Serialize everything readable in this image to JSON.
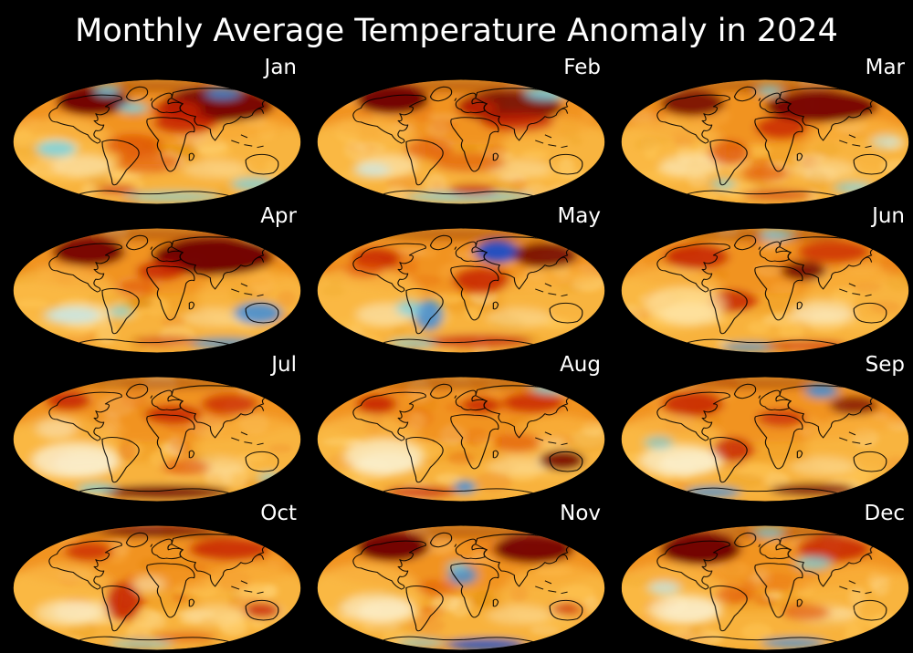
{
  "title": "Monthly Average Temperature Anomaly in 2024",
  "chart_data": {
    "type": "heatmap",
    "subtype": "global-temperature-anomaly-map-small-multiples",
    "projection": "mollweide",
    "title": "Monthly Average Temperature Anomaly in 2024",
    "grid": {
      "rows": 4,
      "cols": 3
    },
    "categories": [
      "Jan",
      "Feb",
      "Mar",
      "Apr",
      "May",
      "Jun",
      "Jul",
      "Aug",
      "Sep",
      "Oct",
      "Nov",
      "Dec"
    ],
    "background": "#000000",
    "colormap": "diverging blue-cyan-cream-gold-orange-red-darkred",
    "legend": "none",
    "palette": {
      "gold": "#f3a42b",
      "lightgold": "#ffc857",
      "amber": "#df8a10",
      "orange": "#ef8412",
      "orangered": "#dd4a00",
      "red": "#c41e00",
      "darkred": "#6e0000",
      "cream": "#fbf3d8",
      "paleyellow": "#ffe2a0",
      "cyan": "#72d4ee",
      "lightcyan": "#bfeaf6",
      "blue": "#3c8ede",
      "deepblue": "#1b4ec8",
      "label_color": "#ffffff"
    },
    "base_features": [
      [
        180,
        52,
        188,
        42,
        "orange",
        0.5
      ],
      [
        180,
        10,
        120,
        10,
        "darkred",
        0.35
      ],
      [
        60,
        102,
        72,
        46,
        "lightgold",
        0.55
      ],
      [
        300,
        102,
        70,
        45,
        "lightgold",
        0.45
      ],
      [
        180,
        150,
        180,
        28,
        "lightgold",
        0.4
      ],
      [
        88,
        124,
        38,
        16,
        "cream",
        0.5
      ],
      [
        252,
        128,
        40,
        14,
        "cream",
        0.35
      ]
    ],
    "subplots": [
      {
        "label": "Jan",
        "features": [
          [
            100,
            32,
            45,
            20,
            "darkred",
            0.95
          ],
          [
            255,
            38,
            70,
            24,
            "darkred",
            0.9
          ],
          [
            205,
            45,
            30,
            15,
            "red",
            0.85
          ],
          [
            215,
            64,
            40,
            14,
            "red",
            0.8
          ],
          [
            150,
            95,
            35,
            16,
            "orangered",
            0.7
          ],
          [
            170,
            120,
            40,
            15,
            "orangered",
            0.6
          ],
          [
            55,
            100,
            25,
            12,
            "cyan",
            0.8
          ],
          [
            300,
            150,
            28,
            10,
            "cyan",
            0.7
          ],
          [
            150,
            42,
            18,
            8,
            "cyan",
            0.8
          ],
          [
            262,
            22,
            22,
            8,
            "blue",
            0.8
          ],
          [
            118,
            18,
            15,
            7,
            "cyan",
            0.8
          ],
          [
            200,
            168,
            60,
            8,
            "cyan",
            0.6
          ],
          [
            130,
            158,
            25,
            8,
            "red",
            0.6
          ]
        ]
      },
      {
        "label": "Feb",
        "features": [
          [
            95,
            30,
            45,
            20,
            "darkred",
            0.95
          ],
          [
            240,
            40,
            65,
            22,
            "darkred",
            0.85
          ],
          [
            200,
            42,
            25,
            12,
            "red",
            0.8
          ],
          [
            250,
            62,
            45,
            14,
            "red",
            0.7
          ],
          [
            285,
            22,
            25,
            9,
            "cyan",
            0.8
          ],
          [
            190,
            168,
            80,
            8,
            "cyan",
            0.7
          ],
          [
            195,
            158,
            30,
            8,
            "red",
            0.7
          ],
          [
            140,
            100,
            30,
            14,
            "orangered",
            0.6
          ],
          [
            70,
            130,
            22,
            10,
            "lightcyan",
            0.6
          ],
          [
            190,
            120,
            45,
            14,
            "orangered",
            0.55
          ]
        ]
      },
      {
        "label": "Mar",
        "features": [
          [
            90,
            35,
            40,
            18,
            "darkred",
            0.85
          ],
          [
            250,
            40,
            70,
            22,
            "darkred",
            0.9
          ],
          [
            200,
            70,
            32,
            16,
            "red",
            0.75
          ],
          [
            135,
            105,
            25,
            18,
            "orangered",
            0.7
          ],
          [
            185,
            18,
            15,
            7,
            "cyan",
            0.7
          ],
          [
            330,
            90,
            18,
            10,
            "lightcyan",
            0.6
          ],
          [
            290,
            155,
            25,
            9,
            "cyan",
            0.6
          ],
          [
            180,
            135,
            30,
            12,
            "orangered",
            0.6
          ],
          [
            128,
            150,
            16,
            8,
            "cyan",
            0.6
          ],
          [
            195,
            165,
            45,
            8,
            "red",
            0.55
          ]
        ]
      },
      {
        "label": "Apr",
        "features": [
          [
            250,
            42,
            75,
            26,
            "darkred",
            0.95
          ],
          [
            95,
            35,
            45,
            20,
            "darkred",
            0.9
          ],
          [
            185,
            62,
            30,
            14,
            "red",
            0.8
          ],
          [
            305,
            122,
            30,
            16,
            "blue",
            0.85
          ],
          [
            75,
            125,
            35,
            12,
            "lightcyan",
            0.7
          ],
          [
            265,
            165,
            45,
            9,
            "blue",
            0.7
          ],
          [
            135,
            120,
            15,
            10,
            "cyan",
            0.6
          ],
          [
            155,
            85,
            25,
            12,
            "orangered",
            0.6
          ],
          [
            190,
            162,
            40,
            8,
            "red",
            0.5
          ]
        ]
      },
      {
        "label": "May",
        "features": [
          [
            225,
            35,
            28,
            16,
            "deepblue",
            0.95
          ],
          [
            285,
            40,
            40,
            18,
            "darkred",
            0.85
          ],
          [
            75,
            45,
            30,
            16,
            "red",
            0.8
          ],
          [
            205,
            75,
            35,
            18,
            "red",
            0.8
          ],
          [
            140,
            125,
            18,
            22,
            "blue",
            0.85
          ],
          [
            115,
            115,
            15,
            12,
            "cyan",
            0.7
          ],
          [
            200,
            162,
            70,
            10,
            "red",
            0.7
          ],
          [
            120,
            165,
            30,
            8,
            "cyan",
            0.6
          ],
          [
            60,
            60,
            25,
            12,
            "orangered",
            0.6
          ]
        ]
      },
      {
        "label": "Jun",
        "features": [
          [
            95,
            42,
            40,
            18,
            "red",
            0.85
          ],
          [
            228,
            62,
            28,
            14,
            "darkred",
            0.85
          ],
          [
            265,
            35,
            45,
            16,
            "red",
            0.7
          ],
          [
            140,
            105,
            28,
            16,
            "red",
            0.8
          ],
          [
            80,
            110,
            50,
            25,
            "paleyellow",
            0.7
          ],
          [
            250,
            120,
            40,
            16,
            "cream",
            0.5
          ],
          [
            160,
            170,
            35,
            7,
            "blue",
            0.7
          ],
          [
            230,
            168,
            50,
            8,
            "red",
            0.6
          ],
          [
            195,
            12,
            20,
            7,
            "cyan",
            0.7
          ]
        ]
      },
      {
        "label": "Jul",
        "features": [
          [
            80,
            120,
            55,
            25,
            "cream",
            0.75
          ],
          [
            70,
            35,
            28,
            14,
            "red",
            0.85
          ],
          [
            200,
            55,
            35,
            14,
            "red",
            0.8
          ],
          [
            270,
            40,
            35,
            15,
            "red",
            0.7
          ],
          [
            190,
            165,
            80,
            10,
            "darkred",
            0.85
          ],
          [
            105,
            160,
            25,
            8,
            "cyan",
            0.7
          ],
          [
            55,
            75,
            25,
            14,
            "cream",
            0.5
          ],
          [
            215,
            130,
            30,
            12,
            "orangered",
            0.6
          ],
          [
            320,
            145,
            15,
            8,
            "cyan",
            0.6
          ]
        ]
      },
      {
        "label": "Aug",
        "features": [
          [
            85,
            115,
            50,
            25,
            "cream",
            0.7
          ],
          [
            75,
            40,
            25,
            14,
            "red",
            0.85
          ],
          [
            205,
            42,
            25,
            12,
            "red",
            0.8
          ],
          [
            270,
            38,
            38,
            15,
            "red",
            0.75
          ],
          [
            305,
            120,
            28,
            15,
            "darkred",
            0.85
          ],
          [
            185,
            158,
            14,
            10,
            "blue",
            0.85
          ],
          [
            130,
            165,
            45,
            9,
            "red",
            0.7
          ],
          [
            290,
            18,
            22,
            8,
            "cyan",
            0.7
          ],
          [
            250,
            95,
            30,
            14,
            "orangered",
            0.6
          ]
        ]
      },
      {
        "label": "Sep",
        "features": [
          [
            90,
            40,
            38,
            18,
            "red",
            0.8
          ],
          [
            140,
            105,
            25,
            18,
            "red",
            0.8
          ],
          [
            250,
            22,
            20,
            10,
            "blue",
            0.85
          ],
          [
            290,
            42,
            30,
            14,
            "darkred",
            0.7
          ],
          [
            200,
            60,
            30,
            13,
            "red",
            0.7
          ],
          [
            75,
            120,
            50,
            22,
            "cream",
            0.7
          ],
          [
            240,
            162,
            55,
            9,
            "darkred",
            0.8
          ],
          [
            115,
            165,
            35,
            9,
            "blue",
            0.75
          ],
          [
            48,
            95,
            18,
            10,
            "cyan",
            0.6
          ]
        ]
      },
      {
        "label": "Oct",
        "features": [
          [
            138,
            110,
            22,
            28,
            "red",
            0.85
          ],
          [
            270,
            35,
            50,
            16,
            "red",
            0.8
          ],
          [
            180,
            10,
            70,
            7,
            "darkred",
            0.8
          ],
          [
            310,
            122,
            22,
            12,
            "red",
            0.75
          ],
          [
            170,
            85,
            20,
            12,
            "cream",
            0.5
          ],
          [
            160,
            170,
            40,
            7,
            "cyan",
            0.6
          ],
          [
            95,
            38,
            30,
            14,
            "red",
            0.7
          ],
          [
            70,
            125,
            40,
            18,
            "cream",
            0.5
          ],
          [
            215,
            160,
            40,
            8,
            "orangered",
            0.55
          ]
        ]
      },
      {
        "label": "Nov",
        "features": [
          [
            95,
            32,
            45,
            20,
            "darkred",
            0.95
          ],
          [
            270,
            35,
            50,
            20,
            "darkred",
            0.9
          ],
          [
            182,
            72,
            18,
            14,
            "blue",
            0.8
          ],
          [
            175,
            60,
            12,
            8,
            "cyan",
            0.6
          ],
          [
            310,
            120,
            18,
            10,
            "red",
            0.6
          ],
          [
            210,
            170,
            50,
            9,
            "deepblue",
            0.85
          ],
          [
            130,
            168,
            30,
            7,
            "cyan",
            0.6
          ],
          [
            75,
            118,
            45,
            20,
            "cream",
            0.6
          ],
          [
            150,
            90,
            25,
            12,
            "orangered",
            0.5
          ]
        ]
      },
      {
        "label": "Dec",
        "features": [
          [
            100,
            35,
            50,
            22,
            "darkred",
            0.95
          ],
          [
            265,
            35,
            45,
            18,
            "red",
            0.8
          ],
          [
            240,
            55,
            22,
            10,
            "cyan",
            0.7
          ],
          [
            55,
            90,
            20,
            10,
            "lightcyan",
            0.7
          ],
          [
            80,
            120,
            45,
            20,
            "cream",
            0.65
          ],
          [
            215,
            168,
            40,
            8,
            "blue",
            0.75
          ],
          [
            230,
            125,
            30,
            12,
            "orangered",
            0.6
          ],
          [
            185,
            12,
            18,
            7,
            "cyan",
            0.7
          ],
          [
            140,
            100,
            22,
            12,
            "orangered",
            0.6
          ]
        ]
      }
    ]
  }
}
